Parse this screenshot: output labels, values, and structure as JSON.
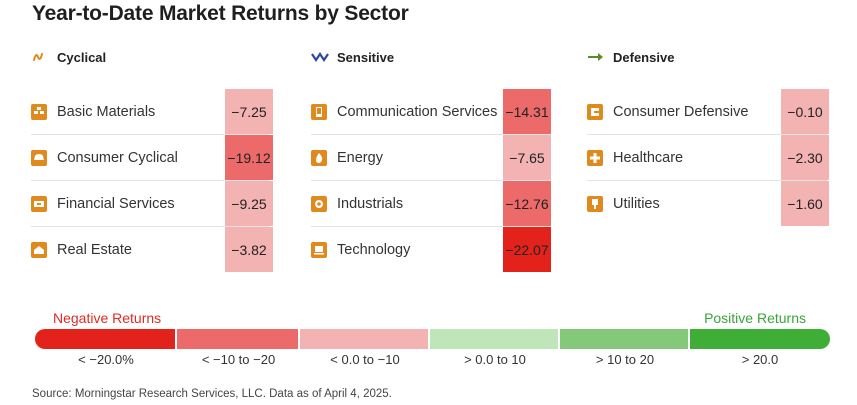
{
  "title": "Year-to-Date Market Returns by Sector",
  "groups": [
    {
      "name": "Cyclical",
      "icon": "cyclical-wave-icon",
      "sectors": [
        {
          "name": "Basic Materials",
          "value": "−7.25",
          "icon": "basic-materials-icon"
        },
        {
          "name": "Consumer Cyclical",
          "value": "−19.12",
          "icon": "consumer-cyclical-icon"
        },
        {
          "name": "Financial Services",
          "value": "−9.25",
          "icon": "financial-services-icon"
        },
        {
          "name": "Real Estate",
          "value": "−3.82",
          "icon": "real-estate-icon"
        }
      ]
    },
    {
      "name": "Sensitive",
      "icon": "sensitive-zigzag-icon",
      "sectors": [
        {
          "name": "Communication Services",
          "value": "−14.31",
          "icon": "communication-services-icon"
        },
        {
          "name": "Energy",
          "value": "−7.65",
          "icon": "energy-icon"
        },
        {
          "name": "Industrials",
          "value": "−12.76",
          "icon": "industrials-icon"
        },
        {
          "name": "Technology",
          "value": "−22.07",
          "icon": "technology-icon"
        }
      ]
    },
    {
      "name": "Defensive",
      "icon": "defensive-arrow-icon",
      "sectors": [
        {
          "name": "Consumer Defensive",
          "value": "−0.10",
          "icon": "consumer-defensive-icon"
        },
        {
          "name": "Healthcare",
          "value": "−2.30",
          "icon": "healthcare-icon"
        },
        {
          "name": "Utilities",
          "value": "−1.60",
          "icon": "utilities-icon"
        }
      ]
    }
  ],
  "legend": {
    "negative_label": "Negative Returns",
    "positive_label": "Positive Returns",
    "bins": [
      {
        "label": "< −20.0%",
        "color": "#e3231b"
      },
      {
        "label": "< −10 to −20",
        "color": "#ec6b6a"
      },
      {
        "label": "< 0.0 to −10",
        "color": "#f3b3b2"
      },
      {
        "label": "> 0.0 to 10",
        "color": "#bfe6b8"
      },
      {
        "label": "> 10 to 20",
        "color": "#84c97a"
      },
      {
        "label": "> 20.0",
        "color": "#3fae36"
      }
    ]
  },
  "source": "Source: Morningstar Research Services, LLC. Data as of April 4, 2025.",
  "chart_data": {
    "type": "heatmap",
    "title": "Year-to-Date Market Returns by Sector",
    "categories": [
      "Basic Materials",
      "Consumer Cyclical",
      "Financial Services",
      "Real Estate",
      "Communication Services",
      "Energy",
      "Industrials",
      "Technology",
      "Consumer Defensive",
      "Healthcare",
      "Utilities"
    ],
    "values": [
      -7.25,
      -19.12,
      -9.25,
      -3.82,
      -14.31,
      -7.65,
      -12.76,
      -22.07,
      -0.1,
      -2.3,
      -1.6
    ],
    "groups": {
      "Cyclical": [
        "Basic Materials",
        "Consumer Cyclical",
        "Financial Services",
        "Real Estate"
      ],
      "Sensitive": [
        "Communication Services",
        "Energy",
        "Industrials",
        "Technology"
      ],
      "Defensive": [
        "Consumer Defensive",
        "Healthcare",
        "Utilities"
      ]
    }
  }
}
